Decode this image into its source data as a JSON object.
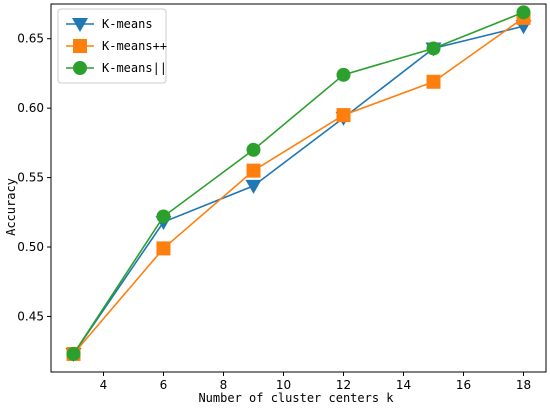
{
  "chart_data": {
    "type": "line",
    "xlabel": "Number of cluster centers k",
    "ylabel": "Accuracy",
    "x": [
      3,
      6,
      9,
      12,
      15,
      18
    ],
    "xlim": [
      2.25,
      18.75
    ],
    "ylim": [
      0.41,
      0.675
    ],
    "xticks": [
      "4",
      "6",
      "8",
      "10",
      "12",
      "14",
      "16",
      "18"
    ],
    "yticks": [
      "0.45",
      "0.50",
      "0.55",
      "0.60",
      "0.65"
    ],
    "legend_position": "top-left",
    "grid": false,
    "series": [
      {
        "name": "K-means",
        "color": "#1f77b4",
        "marker": "triangle-down",
        "values": [
          0.423,
          0.518,
          0.544,
          0.593,
          0.643,
          0.659
        ]
      },
      {
        "name": "K-means++",
        "color": "#ff7f0e",
        "marker": "square",
        "values": [
          0.423,
          0.499,
          0.555,
          0.595,
          0.619,
          0.665
        ]
      },
      {
        "name": "K-means||",
        "color": "#2ca02c",
        "marker": "circle",
        "values": [
          0.423,
          0.522,
          0.57,
          0.624,
          0.643,
          0.669
        ]
      }
    ]
  }
}
